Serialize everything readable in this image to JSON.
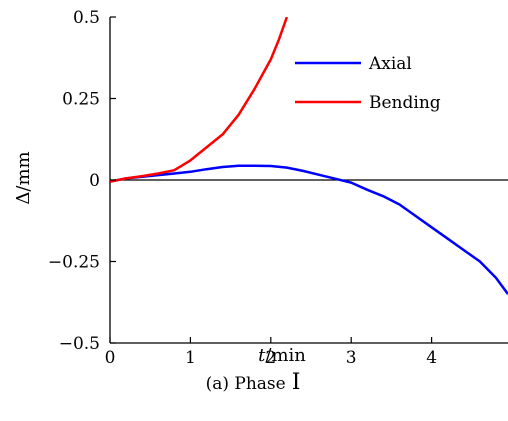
{
  "chart_data": {
    "type": "line",
    "xlabel": {
      "italic": "t",
      "rest": "/min"
    },
    "ylabel": "Δ/mm",
    "xlim": [
      0,
      4.95
    ],
    "ylim": [
      -0.5,
      0.5
    ],
    "xticks": [
      "0",
      "1",
      "2",
      "3",
      "4"
    ],
    "xtick_values": [
      0,
      1,
      2,
      3,
      4
    ],
    "yticks": [
      "0.5",
      "0.25",
      "0",
      "−0.25",
      "−0.5"
    ],
    "ytick_values": [
      0.5,
      0.25,
      0,
      -0.25,
      -0.5
    ],
    "grid": false,
    "legend_position": "top-right",
    "zero_line": true,
    "series": [
      {
        "name": "Axial",
        "color": "#0000ff",
        "x": [
          0,
          0.2,
          0.4,
          0.6,
          0.8,
          1.0,
          1.2,
          1.4,
          1.6,
          1.8,
          2.0,
          2.2,
          2.4,
          2.6,
          2.8,
          3.0,
          3.2,
          3.4,
          3.6,
          3.8,
          4.0,
          4.2,
          4.4,
          4.6,
          4.8,
          4.95
        ],
        "y": [
          -0.005,
          0.005,
          0.01,
          0.015,
          0.02,
          0.025,
          0.033,
          0.04,
          0.044,
          0.044,
          0.043,
          0.038,
          0.028,
          0.016,
          0.004,
          -0.008,
          -0.03,
          -0.05,
          -0.075,
          -0.11,
          -0.145,
          -0.18,
          -0.215,
          -0.25,
          -0.3,
          -0.35
        ]
      },
      {
        "name": "Bending",
        "color": "#ff0000",
        "x": [
          0,
          0.2,
          0.4,
          0.6,
          0.8,
          1.0,
          1.2,
          1.4,
          1.6,
          1.8,
          2.0,
          2.1,
          2.2
        ],
        "y": [
          -0.005,
          0.005,
          0.012,
          0.02,
          0.03,
          0.06,
          0.1,
          0.14,
          0.2,
          0.28,
          0.37,
          0.43,
          0.5
        ]
      }
    ]
  },
  "caption": {
    "label": "(a) Phase",
    "numeral": "Ⅰ"
  }
}
